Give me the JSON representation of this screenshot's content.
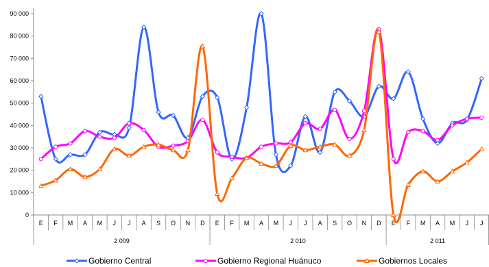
{
  "chart_data": {
    "type": "line",
    "ylim": [
      0,
      90000
    ],
    "yticks": [
      "0",
      "10 000",
      "20 000",
      "30 000",
      "40 000",
      "50 000",
      "60 000",
      "70 000",
      "80 000",
      "90 000"
    ],
    "ytick_values": [
      0,
      10000,
      20000,
      30000,
      40000,
      50000,
      60000,
      70000,
      80000,
      90000
    ],
    "months": [
      "E",
      "F",
      "M",
      "A",
      "M",
      "J",
      "J",
      "A",
      "S",
      "O",
      "N",
      "D",
      "E",
      "F",
      "M",
      "A",
      "M",
      "J",
      "J",
      "A",
      "S",
      "O",
      "N",
      "D",
      "E",
      "F",
      "M",
      "A",
      "M",
      "J",
      "J"
    ],
    "years": [
      {
        "label": "2 009",
        "start": 0,
        "count": 12
      },
      {
        "label": "2 010",
        "start": 12,
        "count": 12
      },
      {
        "label": "2 011",
        "start": 24,
        "count": 7
      }
    ],
    "legend_position": "bottom",
    "grid": false,
    "series": [
      {
        "name": "Gobierno Central",
        "color": "#3366ff",
        "marker": "diamond",
        "values": [
          53000,
          25000,
          27000,
          27000,
          37000,
          36000,
          39000,
          84000,
          46000,
          44500,
          34500,
          53000,
          52500,
          25000,
          48000,
          90000,
          27000,
          22000,
          44000,
          28000,
          55000,
          51000,
          44000,
          57500,
          52000,
          64000,
          43000,
          32000,
          41000,
          42500,
          61000
        ]
      },
      {
        "name": "Gobierno Regional Huánuco",
        "color": "#ff00ff",
        "marker": "circle",
        "values": [
          25000,
          30500,
          32000,
          37500,
          35000,
          34500,
          41000,
          38000,
          30500,
          31000,
          33000,
          42500,
          28000,
          26000,
          25500,
          30500,
          32000,
          32500,
          41000,
          38500,
          47000,
          34000,
          46500,
          83000,
          25000,
          37000,
          37500,
          33500,
          40000,
          43000,
          43500
        ]
      },
      {
        "name": "Gobiernos Locales",
        "color": "#ff6600",
        "marker": "triangle",
        "values": [
          13000,
          15500,
          20500,
          17000,
          20500,
          29500,
          26500,
          30500,
          31500,
          29000,
          29000,
          75500,
          9500,
          16500,
          25500,
          23000,
          22000,
          31000,
          29000,
          30500,
          31500,
          26500,
          38000,
          82000,
          0,
          13500,
          19500,
          15000,
          19500,
          23500,
          29500
        ]
      }
    ]
  }
}
